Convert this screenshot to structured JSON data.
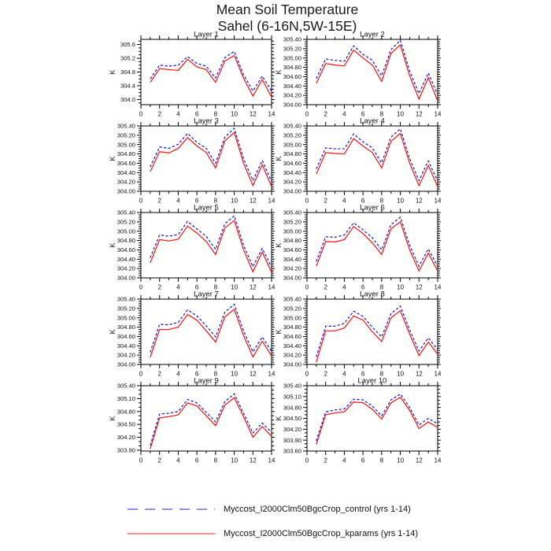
{
  "title": {
    "line1": "Mean Soil Temperature",
    "line2": "Sahel (6-16N,5W-15E)"
  },
  "colors": {
    "control": "#1414dd",
    "kparams": "#ff1010",
    "axis": "#000000"
  },
  "legend": {
    "entries": [
      {
        "label": "Myccost_I2000Clm50BgcCrop_control (yrs 1-14)",
        "style": "dashed",
        "color": "#1414dd"
      },
      {
        "label": "Myccost_I2000Clm50BgcCrop_kparams (yrs 1-14)",
        "style": "solid",
        "color": "#ff1010"
      }
    ]
  },
  "chart_data": {
    "type": "line",
    "grid": false,
    "legend_position": "bottom",
    "ylabel": "K",
    "xlabel": "",
    "x": [
      1,
      2,
      3,
      4,
      5,
      6,
      7,
      8,
      9,
      10,
      11,
      12,
      13,
      14
    ],
    "xlim": [
      0,
      14
    ],
    "xticks": [
      0,
      2,
      4,
      6,
      8,
      10,
      12,
      14
    ],
    "xtick_labels": [
      "0",
      "2",
      "4",
      "6",
      "8",
      "10",
      "12",
      "14"
    ],
    "xminor": [
      1,
      3,
      5,
      7,
      9,
      11,
      13
    ],
    "series_names": [
      "Myccost_I2000Clm50BgcCrop_control (yrs 1-14)",
      "Myccost_I2000Clm50BgcCrop_kparams (yrs 1-14)"
    ],
    "panels": [
      {
        "title": "Layer 1",
        "ylim": [
          303.85,
          305.75
        ],
        "yticks": [
          304.0,
          304.4,
          304.8,
          305.2,
          305.6
        ],
        "ytick_labels": [
          "304.0",
          "304.4",
          "304.8",
          "305.2",
          "305.6"
        ],
        "yminor_step": 0.1,
        "control": [
          304.6,
          305.0,
          304.97,
          305.0,
          305.25,
          305.05,
          304.97,
          304.63,
          305.22,
          305.4,
          304.72,
          304.25,
          304.68,
          304.25
        ],
        "kparams": [
          304.5,
          304.9,
          304.87,
          304.85,
          305.17,
          304.95,
          304.87,
          304.5,
          305.12,
          305.28,
          304.62,
          304.1,
          304.58,
          304.07
        ]
      },
      {
        "title": "Layer 2",
        "ylim": [
          304.0,
          305.4
        ],
        "yticks": [
          304.0,
          304.2,
          304.4,
          304.6,
          304.8,
          305.0,
          305.2,
          305.4
        ],
        "ytick_labels": [
          "304.00",
          "304.20",
          "304.40",
          "304.60",
          "304.80",
          "305.00",
          "305.20",
          "305.40"
        ],
        "yminor_step": 0.05,
        "control": [
          304.56,
          304.98,
          304.95,
          304.93,
          305.26,
          305.08,
          304.95,
          304.62,
          305.18,
          305.38,
          304.72,
          304.24,
          304.68,
          304.22
        ],
        "kparams": [
          304.46,
          304.88,
          304.85,
          304.83,
          305.17,
          305.0,
          304.85,
          304.5,
          305.1,
          305.28,
          304.62,
          304.12,
          304.58,
          304.08
        ]
      },
      {
        "title": "Layer 3",
        "ylim": [
          304.0,
          305.4
        ],
        "yticks": [
          304.0,
          304.2,
          304.4,
          304.6,
          304.8,
          305.0,
          305.2,
          305.4
        ],
        "ytick_labels": [
          "304.00",
          "304.20",
          "304.40",
          "304.60",
          "304.80",
          "305.00",
          "305.20",
          "305.40"
        ],
        "yminor_step": 0.05,
        "control": [
          304.52,
          304.95,
          304.92,
          305.01,
          305.24,
          305.05,
          304.92,
          304.6,
          305.16,
          305.35,
          304.7,
          304.23,
          304.66,
          304.21
        ],
        "kparams": [
          304.42,
          304.85,
          304.82,
          304.92,
          305.15,
          304.97,
          304.83,
          304.5,
          305.08,
          305.26,
          304.6,
          304.12,
          304.57,
          304.1
        ]
      },
      {
        "title": "Layer 4",
        "ylim": [
          304.0,
          305.4
        ],
        "yticks": [
          304.0,
          304.2,
          304.4,
          304.6,
          304.8,
          305.0,
          305.2,
          305.4
        ],
        "ytick_labels": [
          "304.00",
          "304.20",
          "304.40",
          "304.60",
          "304.80",
          "305.00",
          "305.20",
          "305.40"
        ],
        "yminor_step": 0.05,
        "control": [
          304.48,
          304.93,
          304.91,
          304.91,
          305.23,
          305.06,
          304.93,
          304.61,
          305.16,
          305.34,
          304.7,
          304.23,
          304.65,
          304.22
        ],
        "kparams": [
          304.37,
          304.83,
          304.81,
          304.8,
          305.13,
          304.97,
          304.83,
          304.5,
          305.07,
          305.24,
          304.6,
          304.12,
          304.55,
          304.1
        ]
      },
      {
        "title": "Layer 5",
        "ylim": [
          304.0,
          305.4
        ],
        "yticks": [
          304.0,
          304.2,
          304.4,
          304.6,
          304.8,
          305.0,
          305.2,
          305.4
        ],
        "ytick_labels": [
          "304.00",
          "304.20",
          "304.40",
          "304.60",
          "304.80",
          "305.00",
          "305.20",
          "305.40"
        ],
        "yminor_step": 0.05,
        "control": [
          304.43,
          304.92,
          304.89,
          304.93,
          305.21,
          305.05,
          304.89,
          304.61,
          305.16,
          305.33,
          304.7,
          304.24,
          304.63,
          304.23
        ],
        "kparams": [
          304.32,
          304.82,
          304.79,
          304.83,
          305.11,
          304.96,
          304.78,
          304.5,
          305.07,
          305.23,
          304.6,
          304.13,
          304.55,
          304.12
        ]
      },
      {
        "title": "Layer 6",
        "ylim": [
          304.0,
          305.4
        ],
        "yticks": [
          304.0,
          304.2,
          304.4,
          304.6,
          304.8,
          305.0,
          305.2,
          305.4
        ],
        "ytick_labels": [
          "304.00",
          "304.20",
          "304.40",
          "304.60",
          "304.80",
          "305.00",
          "305.20",
          "305.40"
        ],
        "yminor_step": 0.05,
        "control": [
          304.35,
          304.88,
          304.87,
          304.92,
          305.18,
          305.03,
          304.86,
          304.6,
          305.14,
          305.3,
          304.7,
          304.25,
          304.62,
          304.25
        ],
        "kparams": [
          304.25,
          304.78,
          304.77,
          304.82,
          305.1,
          304.95,
          304.75,
          304.5,
          305.05,
          305.2,
          304.6,
          304.15,
          304.53,
          304.15
        ]
      },
      {
        "title": "Layer 7",
        "ylim": [
          304.0,
          305.4
        ],
        "yticks": [
          304.0,
          304.2,
          304.4,
          304.6,
          304.8,
          305.0,
          305.2,
          305.4
        ],
        "ytick_labels": [
          "304.00",
          "304.20",
          "304.40",
          "304.60",
          "304.80",
          "305.00",
          "305.20",
          "305.40"
        ],
        "yminor_step": 0.05,
        "control": [
          304.26,
          304.86,
          304.85,
          304.9,
          305.17,
          305.04,
          304.83,
          304.59,
          305.12,
          305.29,
          304.72,
          304.27,
          304.59,
          304.28
        ],
        "kparams": [
          304.15,
          304.75,
          304.75,
          304.8,
          305.07,
          304.95,
          304.72,
          304.48,
          305.02,
          305.18,
          304.62,
          304.16,
          304.5,
          304.18
        ]
      },
      {
        "title": "Layer 8",
        "ylim": [
          304.0,
          305.4
        ],
        "yticks": [
          304.0,
          304.2,
          304.4,
          304.6,
          304.8,
          305.0,
          305.2,
          305.4
        ],
        "ytick_labels": [
          "304.00",
          "304.20",
          "304.40",
          "304.60",
          "304.80",
          "305.00",
          "305.20",
          "305.40"
        ],
        "yminor_step": 0.05,
        "control": [
          304.16,
          304.82,
          304.82,
          304.88,
          305.14,
          305.03,
          304.8,
          304.59,
          305.09,
          305.25,
          304.74,
          304.29,
          304.57,
          304.32
        ],
        "kparams": [
          304.05,
          304.72,
          304.72,
          304.78,
          305.04,
          304.95,
          304.7,
          304.49,
          305.0,
          305.15,
          304.65,
          304.19,
          304.48,
          304.22
        ]
      },
      {
        "title": "Layer 9",
        "ylim": [
          303.88,
          305.4
        ],
        "yticks": [
          303.9,
          304.2,
          304.5,
          304.8,
          305.1,
          305.4
        ],
        "ytick_labels": [
          "303.90",
          "304.20",
          "304.50",
          "304.80",
          "305.10",
          "305.40"
        ],
        "yminor_step": 0.1,
        "control": [
          304.01,
          304.74,
          304.76,
          304.8,
          305.08,
          305.0,
          304.78,
          304.56,
          305.03,
          305.21,
          304.76,
          304.3,
          304.53,
          304.32
        ],
        "kparams": [
          303.93,
          304.65,
          304.68,
          304.72,
          305.0,
          304.93,
          304.7,
          304.47,
          304.95,
          305.12,
          304.68,
          304.2,
          304.45,
          304.22
        ]
      },
      {
        "title": "Layer 10",
        "ylim": [
          303.6,
          305.4
        ],
        "yticks": [
          303.6,
          303.9,
          304.2,
          304.5,
          304.8,
          305.1,
          305.4
        ],
        "ytick_labels": [
          "303.60",
          "303.90",
          "304.20",
          "304.50",
          "304.80",
          "305.10",
          "305.40"
        ],
        "yminor_step": 0.1,
        "control": [
          303.88,
          304.68,
          304.73,
          304.76,
          305.03,
          305.01,
          304.84,
          304.57,
          305.01,
          305.17,
          304.8,
          304.32,
          304.5,
          304.35
        ],
        "kparams": [
          303.78,
          304.6,
          304.65,
          304.68,
          304.95,
          304.93,
          304.75,
          304.48,
          304.93,
          305.08,
          304.72,
          304.22,
          304.4,
          304.25
        ]
      }
    ]
  }
}
